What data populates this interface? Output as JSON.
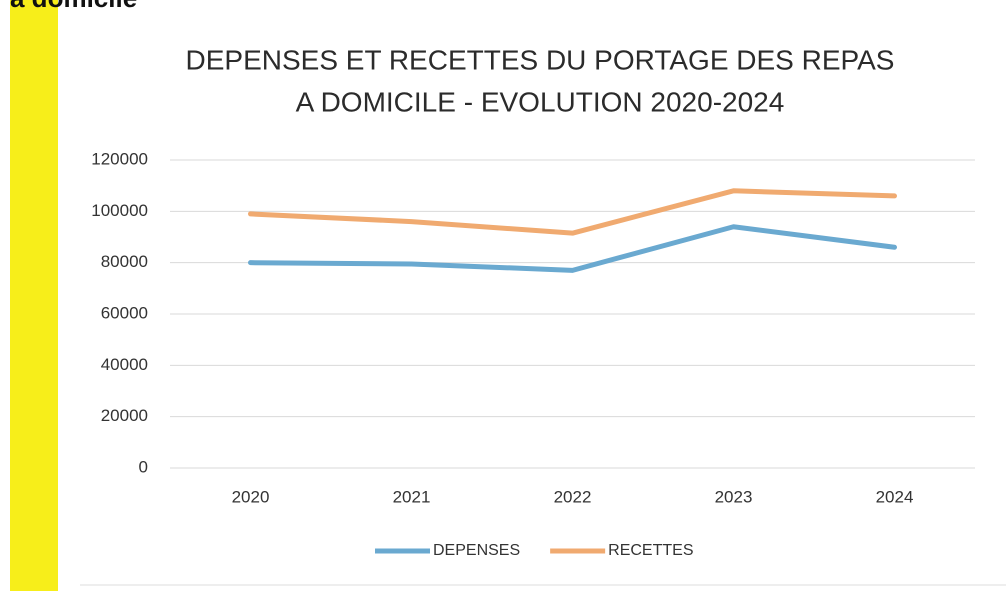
{
  "heading": "a domicile",
  "chart_data": {
    "type": "line",
    "title": [
      "DEPENSES ET RECETTES DU PORTAGE DES REPAS",
      "A DOMICILE - EVOLUTION 2020-2024"
    ],
    "categories": [
      "2020",
      "2021",
      "2022",
      "2023",
      "2024"
    ],
    "series": [
      {
        "name": "DEPENSES",
        "color": "#6aa9d0",
        "values": [
          80000,
          79500,
          77000,
          94000,
          86000
        ]
      },
      {
        "name": "RECETTES",
        "color": "#f0aa70",
        "values": [
          99000,
          96000,
          91500,
          108000,
          106000
        ]
      }
    ],
    "ylim": [
      0,
      120000
    ],
    "yticks": [
      0,
      20000,
      40000,
      60000,
      80000,
      100000,
      120000
    ],
    "grid": true,
    "legend": "bottom"
  }
}
